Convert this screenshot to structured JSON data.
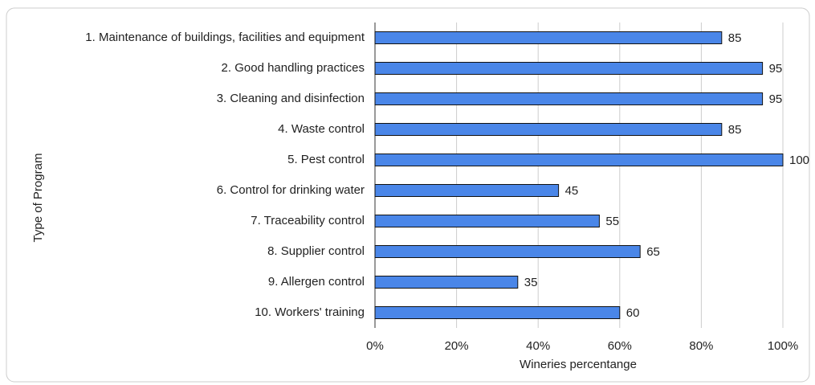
{
  "chart_data": {
    "type": "bar",
    "orientation": "horizontal",
    "x_axis_label": "Wineries percentange",
    "y_axis_label": "Type of Program",
    "categories": [
      "1. Maintenance of buildings, facilities and equipment",
      "2. Good handling practices",
      "3. Cleaning and disinfection",
      "4. Waste control",
      "5. Pest control",
      "6. Control for drinking water",
      "7. Traceability control",
      "8. Supplier control",
      "9. Allergen control",
      "10. Workers' training"
    ],
    "values": [
      85,
      95,
      95,
      85,
      100,
      45,
      55,
      65,
      35,
      60
    ],
    "color": "#4a86e8",
    "xlim": [
      0,
      100
    ],
    "xticks": [
      {
        "value": 0,
        "label": "0%"
      },
      {
        "value": 20,
        "label": "20%"
      },
      {
        "value": 40,
        "label": "40%"
      },
      {
        "value": 60,
        "label": "60%"
      },
      {
        "value": 80,
        "label": "80%"
      },
      {
        "value": 100,
        "label": "100%"
      }
    ],
    "grid": true
  }
}
